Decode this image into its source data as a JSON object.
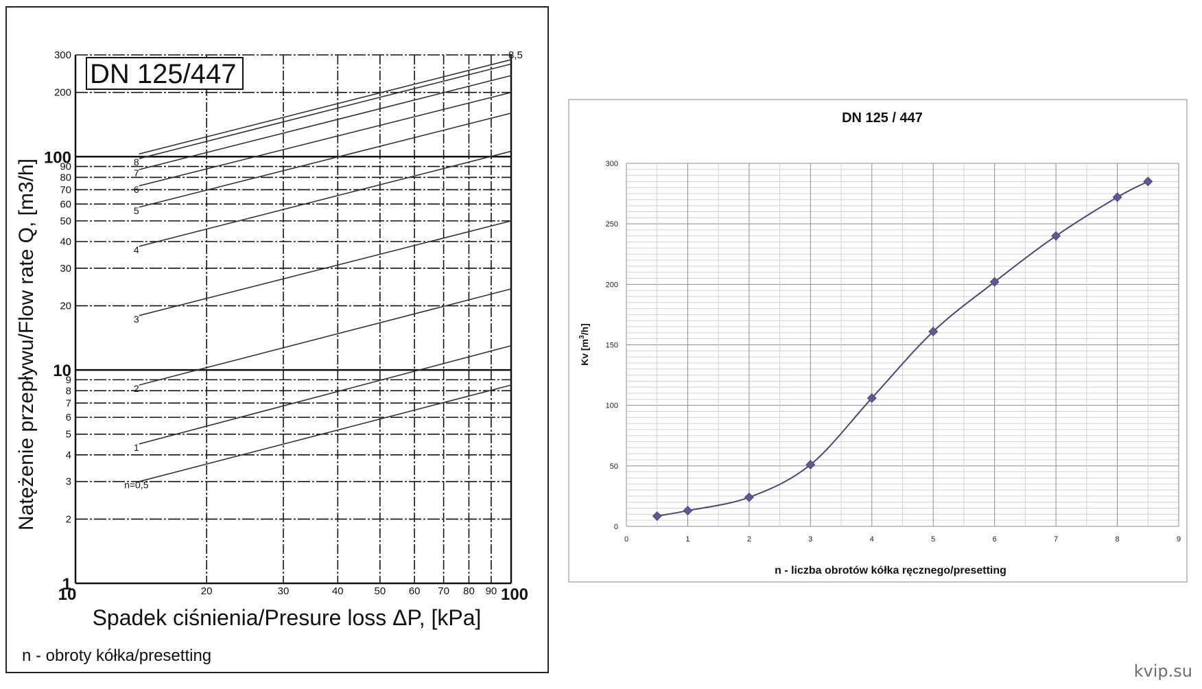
{
  "watermark": "kvip.su",
  "chart_data": [
    {
      "type": "line",
      "scale": "log-log",
      "title": "DN 125/447",
      "xlabel": "Spadek ciśnienia/Presure loss ΔP, [kPa]",
      "ylabel": "Natężenie przepływu/Flow rate Q, [m3/h]",
      "note": "n - obroty kółka/presetting",
      "xlim": [
        10,
        100
      ],
      "ylim": [
        1,
        300
      ],
      "grid": true,
      "x_ticks": [
        {
          "v": 10,
          "label": "10",
          "major": true
        },
        {
          "v": 20,
          "label": "20",
          "major": false
        },
        {
          "v": 30,
          "label": "30",
          "major": false
        },
        {
          "v": 40,
          "label": "40",
          "major": false
        },
        {
          "v": 50,
          "label": "50",
          "major": false
        },
        {
          "v": 60,
          "label": "60",
          "major": false
        },
        {
          "v": 70,
          "label": "70",
          "major": false
        },
        {
          "v": 80,
          "label": "80",
          "major": false
        },
        {
          "v": 90,
          "label": "90",
          "major": false
        },
        {
          "v": 100,
          "label": "100",
          "major": true
        }
      ],
      "y_ticks": [
        {
          "v": 1,
          "label": "1",
          "major": true
        },
        {
          "v": 2,
          "label": "2",
          "major": false
        },
        {
          "v": 3,
          "label": "3",
          "major": false
        },
        {
          "v": 4,
          "label": "4",
          "major": false
        },
        {
          "v": 5,
          "label": "5",
          "major": false
        },
        {
          "v": 6,
          "label": "6",
          "major": false
        },
        {
          "v": 7,
          "label": "7",
          "major": false
        },
        {
          "v": 8,
          "label": "8",
          "major": false
        },
        {
          "v": 9,
          "label": "9",
          "major": false
        },
        {
          "v": 10,
          "label": "10",
          "major": true
        },
        {
          "v": 20,
          "label": "20",
          "major": false
        },
        {
          "v": 30,
          "label": "30",
          "major": false
        },
        {
          "v": 40,
          "label": "40",
          "major": false
        },
        {
          "v": 50,
          "label": "50",
          "major": false
        },
        {
          "v": 60,
          "label": "60",
          "major": false
        },
        {
          "v": 70,
          "label": "70",
          "major": false
        },
        {
          "v": 80,
          "label": "80",
          "major": false
        },
        {
          "v": 90,
          "label": "90",
          "major": false
        },
        {
          "v": 100,
          "label": "100",
          "major": true
        },
        {
          "v": 200,
          "label": "200",
          "major": false
        },
        {
          "v": 300,
          "label": "300",
          "major": false
        }
      ],
      "series": [
        {
          "name": "n=0,5",
          "x": [
            14,
            100
          ],
          "y": [
            3.0,
            8.5
          ]
        },
        {
          "name": "1",
          "x": [
            14,
            100
          ],
          "y": [
            4.5,
            13
          ]
        },
        {
          "name": "2",
          "x": [
            14,
            100
          ],
          "y": [
            8.5,
            24
          ]
        },
        {
          "name": "3",
          "x": [
            14,
            100
          ],
          "y": [
            18,
            50
          ]
        },
        {
          "name": "4",
          "x": [
            14,
            100
          ],
          "y": [
            38,
            106
          ]
        },
        {
          "name": "5",
          "x": [
            14,
            100
          ],
          "y": [
            58,
            160
          ]
        },
        {
          "name": "6",
          "x": [
            14,
            100
          ],
          "y": [
            73,
            200
          ]
        },
        {
          "name": "7",
          "x": [
            14,
            100
          ],
          "y": [
            87,
            240
          ]
        },
        {
          "name": "8",
          "x": [
            14,
            100
          ],
          "y": [
            98,
            272
          ]
        },
        {
          "name": "",
          "x": [
            14,
            100
          ],
          "y": [
            103,
            285
          ]
        }
      ],
      "end_label": "8,5"
    },
    {
      "type": "line",
      "title": "DN 125 / 447",
      "xlabel": "n - liczba obrotów kółka ręcznego/presetting",
      "ylabel_main": "Kv [m",
      "ylabel_sup": "3",
      "ylabel_end": "/h]",
      "xlim": [
        0,
        9
      ],
      "ylim": [
        0,
        300
      ],
      "x_ticks": [
        0,
        1,
        2,
        3,
        4,
        5,
        6,
        7,
        8,
        9
      ],
      "y_ticks": [
        0,
        50,
        100,
        150,
        200,
        250,
        300
      ],
      "grid": true,
      "line_color": "#4a4778",
      "marker_color": "#5b5a96",
      "series": [
        {
          "x": [
            0.5,
            1,
            2,
            3,
            4,
            5,
            6,
            7,
            8,
            8.5
          ],
          "y": [
            8.5,
            13,
            24,
            51,
            106,
            161,
            202,
            240,
            272,
            285
          ]
        }
      ]
    }
  ]
}
